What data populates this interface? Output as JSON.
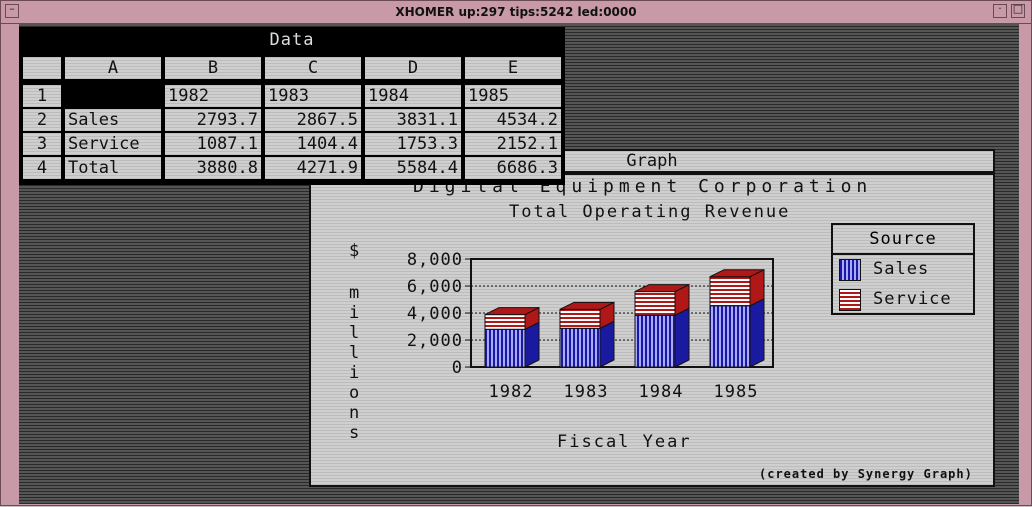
{
  "window": {
    "title": "XHOMER up:297 tips:5242 led:0000"
  },
  "data_window": {
    "title": "Data",
    "columns": [
      "A",
      "B",
      "C",
      "D",
      "E"
    ],
    "rows": [
      {
        "num": "1",
        "cells": [
          "",
          "1982",
          "1983",
          "1984",
          "1985"
        ]
      },
      {
        "num": "2",
        "cells": [
          "Sales",
          "2793.7",
          "2867.5",
          "3831.1",
          "4534.2"
        ]
      },
      {
        "num": "3",
        "cells": [
          "Service",
          "1087.1",
          "1404.4",
          "1753.3",
          "2152.1"
        ]
      },
      {
        "num": "4",
        "cells": [
          "Total",
          "3880.8",
          "4271.9",
          "5584.4",
          "6686.3"
        ]
      }
    ]
  },
  "graph_window": {
    "title": "Graph",
    "company": "Digital Equipment Corporation",
    "footer": "(created by Synergy Graph)"
  },
  "chart_data": {
    "type": "bar",
    "stacked": true,
    "title": "Total Operating Revenue",
    "xlabel": "Fiscal Year",
    "ylabel": "$ millions",
    "ylabel_chars": [
      "$",
      "m",
      "i",
      "l",
      "l",
      "i",
      "o",
      "n",
      "s"
    ],
    "categories": [
      "1982",
      "1983",
      "1984",
      "1985"
    ],
    "y_ticks": [
      "8,000",
      "6,000",
      "4,000",
      "2,000",
      "0"
    ],
    "y_tick_values": [
      8000,
      6000,
      4000,
      2000,
      0
    ],
    "ylim": [
      0,
      8000
    ],
    "legend_title": "Source",
    "legend_position": "right",
    "series": [
      {
        "name": "Sales",
        "values": [
          2793.7,
          2867.5,
          3831.1,
          4534.2
        ],
        "color": "#1a1aa0"
      },
      {
        "name": "Service",
        "values": [
          1087.1,
          1404.4,
          1753.3,
          2152.1
        ],
        "color": "#b01818"
      }
    ]
  }
}
